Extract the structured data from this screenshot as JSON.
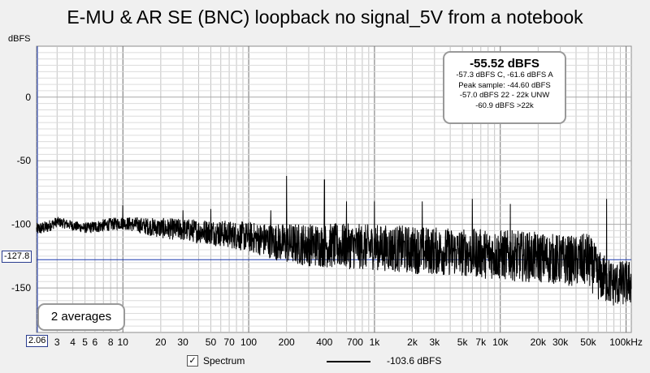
{
  "title": "E-MU & AR SE (BNC) loopback no signal_5V from a notebook",
  "y_unit": "dBFS",
  "cursor": {
    "y_label": "-127.8",
    "x_label": "2.06"
  },
  "info_box": {
    "main": "-55.52 dBFS",
    "lines": [
      "-57.3 dBFS C, -61.6 dBFS A",
      "Peak sample: -44.60 dBFS",
      "-57.0 dBFS 22 - 22k UNW",
      "-60.9 dBFS >22k"
    ]
  },
  "averages_label": "2 averages",
  "legend": {
    "checkbox_mark": "✓",
    "series_label": "Spectrum",
    "series_value": "-103.6 dBFS"
  },
  "chart_data": {
    "type": "line",
    "xscale": "log",
    "xlim": [
      2.06,
      110000
    ],
    "ylim": [
      -185,
      40
    ],
    "yticks": [
      0,
      -50,
      -100,
      -150
    ],
    "xtick_labels": [
      {
        "x": 3,
        "label": "3"
      },
      {
        "x": 4,
        "label": "4"
      },
      {
        "x": 5,
        "label": "5"
      },
      {
        "x": 6,
        "label": "6"
      },
      {
        "x": 8,
        "label": "8"
      },
      {
        "x": 10,
        "label": "10"
      },
      {
        "x": 20,
        "label": "20"
      },
      {
        "x": 30,
        "label": "30"
      },
      {
        "x": 50,
        "label": "50"
      },
      {
        "x": 70,
        "label": "70"
      },
      {
        "x": 100,
        "label": "100"
      },
      {
        "x": 200,
        "label": "200"
      },
      {
        "x": 400,
        "label": "400"
      },
      {
        "x": 700,
        "label": "700"
      },
      {
        "x": 1000,
        "label": "1k"
      },
      {
        "x": 2000,
        "label": "2k"
      },
      {
        "x": 3000,
        "label": "3k"
      },
      {
        "x": 5000,
        "label": "5k"
      },
      {
        "x": 7000,
        "label": "7k"
      },
      {
        "x": 10000,
        "label": "10k"
      },
      {
        "x": 20000,
        "label": "20k"
      },
      {
        "x": 30000,
        "label": "30k"
      },
      {
        "x": 50000,
        "label": "50k"
      },
      {
        "x": 100000,
        "label": "100kHz"
      }
    ],
    "cursor_db": -127.8,
    "series": [
      {
        "name": "Spectrum",
        "x": [
          2.06,
          2.5,
          3,
          4,
          5,
          6,
          8,
          10,
          20,
          50,
          100,
          150,
          200,
          300,
          500,
          1000,
          2000,
          5000,
          10000,
          20000,
          40000,
          50000,
          60000,
          80000,
          100000
        ],
        "y": [
          -104,
          -102,
          -98,
          -101,
          -103,
          -102,
          -100,
          -99,
          -103,
          -106,
          -110,
          -113,
          -115,
          -116,
          -117,
          -118,
          -120,
          -122,
          -124,
          -126,
          -129,
          -128,
          -140,
          -147,
          -146
        ],
        "noise_db": [
          5,
          5,
          4,
          4,
          4,
          5,
          5,
          5,
          8,
          10,
          12,
          14,
          16,
          17,
          18,
          18,
          19,
          19,
          20,
          20,
          20,
          22,
          20,
          18,
          18
        ],
        "spikes": [
          {
            "x": 10,
            "y": -85
          },
          {
            "x": 30,
            "y": -89
          },
          {
            "x": 50,
            "y": -88
          },
          {
            "x": 150,
            "y": -89
          },
          {
            "x": 200,
            "y": -62
          },
          {
            "x": 400,
            "y": -65
          },
          {
            "x": 600,
            "y": -82
          },
          {
            "x": 1000,
            "y": -82
          },
          {
            "x": 2400,
            "y": -82
          },
          {
            "x": 6000,
            "y": -80
          },
          {
            "x": 12000,
            "y": -84
          },
          {
            "x": 70000,
            "y": -80
          }
        ]
      }
    ]
  }
}
